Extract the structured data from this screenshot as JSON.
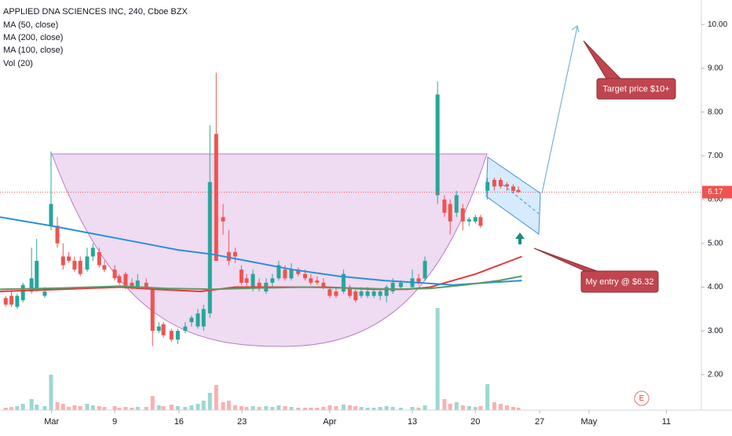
{
  "chart_data": {
    "type": "candlestick",
    "title": "APPLIED DNA SCIENCES INC, 240, Cboe BZX",
    "indicators": [
      "MA (50, close)",
      "MA (200, close)",
      "MA (100, close)",
      "Vol (20)"
    ],
    "up_color": "#26a69a",
    "down_color": "#ef5350",
    "ylim": [
      1.19,
      10.56
    ],
    "yticks": [
      {
        "value": 2,
        "label": "2.00"
      },
      {
        "value": 3,
        "label": "3.00"
      },
      {
        "value": 4,
        "label": "4.00"
      },
      {
        "value": 5,
        "label": "5.00"
      },
      {
        "value": 6,
        "label": "6.00"
      },
      {
        "value": 7,
        "label": "7.00"
      },
      {
        "value": 8,
        "label": "8.00"
      },
      {
        "value": 9,
        "label": "9.00"
      },
      {
        "value": 10,
        "label": "10.00"
      }
    ],
    "xlim": [
      -1,
      121.3
    ],
    "xticks": [
      {
        "value": 8,
        "label": "Mar"
      },
      {
        "value": 19,
        "label": "9"
      },
      {
        "value": 30.2,
        "label": "16"
      },
      {
        "value": 41.2,
        "label": "23"
      },
      {
        "value": 56.5,
        "label": "Apr"
      },
      {
        "value": 70.9,
        "label": "13"
      },
      {
        "value": 81.9,
        "label": "20"
      },
      {
        "value": 93.1,
        "label": "27"
      },
      {
        "value": 101.7,
        "label": "May"
      },
      {
        "value": 115.2,
        "label": "11"
      }
    ],
    "last_price": {
      "value": 6.17,
      "label": "6.17"
    },
    "annotations": [
      "Target price $10+",
      "My entry @ $6.32"
    ],
    "event_marker": "E",
    "candles": [
      {
        "x": 0,
        "o": 3.75,
        "h": 3.8,
        "l": 3.55,
        "c": 3.6,
        "v": 3
      },
      {
        "x": 1,
        "o": 3.8,
        "h": 3.9,
        "l": 3.55,
        "c": 3.6,
        "v": 4
      },
      {
        "x": 2,
        "o": 3.55,
        "h": 3.85,
        "l": 3.5,
        "c": 3.8,
        "v": 5
      },
      {
        "x": 3,
        "o": 3.7,
        "h": 4.1,
        "l": 3.65,
        "c": 4.05,
        "v": 8
      },
      {
        "x": 4.5,
        "o": 3.9,
        "h": 4.9,
        "l": 3.85,
        "c": 4.2,
        "v": 14
      },
      {
        "x": 5.4,
        "o": 3.95,
        "h": 5.1,
        "l": 3.9,
        "c": 4.6,
        "v": 7
      },
      {
        "x": 6.8,
        "o": 3.8,
        "h": 4.0,
        "l": 3.75,
        "c": 3.9,
        "v": 5
      },
      {
        "x": 7.9,
        "o": 5.4,
        "h": 7.1,
        "l": 5.3,
        "c": 5.9,
        "v": 45
      },
      {
        "x": 9,
        "o": 5.4,
        "h": 5.6,
        "l": 4.9,
        "c": 5.0,
        "v": 10
      },
      {
        "x": 10,
        "o": 4.7,
        "h": 5.0,
        "l": 4.4,
        "c": 4.5,
        "v": 8
      },
      {
        "x": 11,
        "o": 4.7,
        "h": 4.8,
        "l": 4.55,
        "c": 4.6,
        "v": 4
      },
      {
        "x": 12,
        "o": 4.6,
        "h": 4.7,
        "l": 4.35,
        "c": 4.4,
        "v": 6
      },
      {
        "x": 13,
        "o": 4.6,
        "h": 4.7,
        "l": 4.25,
        "c": 4.3,
        "v": 5
      },
      {
        "x": 14.2,
        "o": 4.4,
        "h": 4.9,
        "l": 4.35,
        "c": 4.7,
        "v": 8
      },
      {
        "x": 15.2,
        "o": 4.7,
        "h": 5.0,
        "l": 4.6,
        "c": 4.9,
        "v": 6
      },
      {
        "x": 16.3,
        "o": 4.8,
        "h": 4.9,
        "l": 4.45,
        "c": 4.5,
        "v": 5
      },
      {
        "x": 17.2,
        "o": 4.5,
        "h": 4.6,
        "l": 4.35,
        "c": 4.4,
        "v": 4
      },
      {
        "x": 19,
        "o": 4.4,
        "h": 4.5,
        "l": 4.15,
        "c": 4.2,
        "v": 5
      },
      {
        "x": 19.8,
        "o": 4.25,
        "h": 4.3,
        "l": 4.05,
        "c": 4.1,
        "v": 3
      },
      {
        "x": 20.9,
        "o": 4.3,
        "h": 4.35,
        "l": 3.95,
        "c": 4.0,
        "v": 4
      },
      {
        "x": 22,
        "o": 4.1,
        "h": 4.2,
        "l": 3.95,
        "c": 4.0,
        "v": 3
      },
      {
        "x": 23,
        "o": 4.0,
        "h": 4.3,
        "l": 3.95,
        "c": 4.15,
        "v": 4
      },
      {
        "x": 24.5,
        "o": 4.1,
        "h": 4.2,
        "l": 3.95,
        "c": 4.0,
        "v": 4
      },
      {
        "x": 25.6,
        "o": 3.95,
        "h": 4.0,
        "l": 2.65,
        "c": 3.0,
        "v": 18
      },
      {
        "x": 26.7,
        "o": 3.0,
        "h": 3.2,
        "l": 2.95,
        "c": 3.1,
        "v": 6
      },
      {
        "x": 27.5,
        "o": 3.15,
        "h": 3.2,
        "l": 2.85,
        "c": 2.9,
        "v": 5
      },
      {
        "x": 28.9,
        "o": 3.0,
        "h": 3.05,
        "l": 2.75,
        "c": 2.8,
        "v": 7
      },
      {
        "x": 30,
        "o": 2.8,
        "h": 3.05,
        "l": 2.7,
        "c": 3.0,
        "v": 5
      },
      {
        "x": 31.3,
        "o": 3.0,
        "h": 3.2,
        "l": 2.95,
        "c": 3.1,
        "v": 4
      },
      {
        "x": 32.4,
        "o": 3.2,
        "h": 3.35,
        "l": 3.1,
        "c": 3.3,
        "v": 6
      },
      {
        "x": 33.5,
        "o": 3.1,
        "h": 3.5,
        "l": 3.05,
        "c": 3.4,
        "v": 8
      },
      {
        "x": 34.5,
        "o": 3.1,
        "h": 3.6,
        "l": 3.0,
        "c": 3.5,
        "v": 12
      },
      {
        "x": 35.6,
        "o": 3.4,
        "h": 7.7,
        "l": 3.3,
        "c": 6.4,
        "v": 22
      },
      {
        "x": 36.7,
        "o": 7.5,
        "h": 8.9,
        "l": 4.6,
        "c": 4.6,
        "v": 32
      },
      {
        "x": 37.9,
        "o": 5.6,
        "h": 5.9,
        "l": 5.2,
        "c": 5.5,
        "v": 10
      },
      {
        "x": 38.9,
        "o": 4.8,
        "h": 5.3,
        "l": 4.5,
        "c": 4.6,
        "v": 12
      },
      {
        "x": 40,
        "o": 4.8,
        "h": 4.9,
        "l": 4.55,
        "c": 4.7,
        "v": 6
      },
      {
        "x": 41.1,
        "o": 4.4,
        "h": 4.5,
        "l": 4.05,
        "c": 4.1,
        "v": 5
      },
      {
        "x": 42,
        "o": 4.2,
        "h": 4.3,
        "l": 4.0,
        "c": 4.1,
        "v": 4
      },
      {
        "x": 43.1,
        "o": 4.0,
        "h": 4.4,
        "l": 3.9,
        "c": 4.3,
        "v": 5
      },
      {
        "x": 44.2,
        "o": 4.1,
        "h": 4.2,
        "l": 3.9,
        "c": 4.0,
        "v": 4
      },
      {
        "x": 45.4,
        "o": 3.9,
        "h": 4.2,
        "l": 3.85,
        "c": 4.1,
        "v": 5
      },
      {
        "x": 46.5,
        "o": 4.1,
        "h": 4.3,
        "l": 4.0,
        "c": 4.2,
        "v": 4
      },
      {
        "x": 47.6,
        "o": 4.2,
        "h": 4.6,
        "l": 4.15,
        "c": 4.5,
        "v": 6
      },
      {
        "x": 48.7,
        "o": 4.4,
        "h": 4.5,
        "l": 4.15,
        "c": 4.2,
        "v": 5
      },
      {
        "x": 49.8,
        "o": 4.2,
        "h": 4.55,
        "l": 4.15,
        "c": 4.4,
        "v": 4
      },
      {
        "x": 51,
        "o": 4.4,
        "h": 4.45,
        "l": 4.25,
        "c": 4.3,
        "v": 3
      },
      {
        "x": 52.2,
        "o": 4.3,
        "h": 4.4,
        "l": 4.15,
        "c": 4.2,
        "v": 3
      },
      {
        "x": 53.2,
        "o": 4.2,
        "h": 4.3,
        "l": 4.05,
        "c": 4.1,
        "v": 3
      },
      {
        "x": 54.3,
        "o": 4.15,
        "h": 4.25,
        "l": 4.05,
        "c": 4.1,
        "v": 3
      },
      {
        "x": 55.4,
        "o": 4.1,
        "h": 4.2,
        "l": 3.95,
        "c": 4.0,
        "v": 4
      },
      {
        "x": 56.5,
        "o": 3.95,
        "h": 4.0,
        "l": 3.75,
        "c": 3.8,
        "v": 6
      },
      {
        "x": 57.6,
        "o": 3.9,
        "h": 4.0,
        "l": 3.75,
        "c": 3.8,
        "v": 5
      },
      {
        "x": 58.9,
        "o": 3.9,
        "h": 4.4,
        "l": 3.85,
        "c": 4.3,
        "v": 7
      },
      {
        "x": 60,
        "o": 4.0,
        "h": 4.05,
        "l": 3.75,
        "c": 3.8,
        "v": 6
      },
      {
        "x": 61,
        "o": 3.9,
        "h": 3.95,
        "l": 3.65,
        "c": 3.7,
        "v": 5
      },
      {
        "x": 62,
        "o": 3.8,
        "h": 4.0,
        "l": 3.75,
        "c": 3.9,
        "v": 4
      },
      {
        "x": 63.1,
        "o": 3.8,
        "h": 4.0,
        "l": 3.75,
        "c": 3.9,
        "v": 3
      },
      {
        "x": 64.2,
        "o": 3.8,
        "h": 3.95,
        "l": 3.75,
        "c": 3.9,
        "v": 3
      },
      {
        "x": 65.3,
        "o": 3.8,
        "h": 3.95,
        "l": 3.7,
        "c": 3.9,
        "v": 4
      },
      {
        "x": 66.4,
        "o": 3.8,
        "h": 4.05,
        "l": 3.65,
        "c": 4.0,
        "v": 5
      },
      {
        "x": 67.5,
        "o": 3.9,
        "h": 4.2,
        "l": 3.85,
        "c": 4.1,
        "v": 4
      },
      {
        "x": 68.9,
        "o": 4.0,
        "h": 4.15,
        "l": 3.95,
        "c": 4.1,
        "v": 3
      },
      {
        "x": 70.9,
        "o": 4.0,
        "h": 4.4,
        "l": 3.95,
        "c": 4.2,
        "v": 4
      },
      {
        "x": 72,
        "o": 4.2,
        "h": 4.3,
        "l": 4.05,
        "c": 4.1,
        "v": 3
      },
      {
        "x": 73.1,
        "o": 4.2,
        "h": 4.7,
        "l": 4.15,
        "c": 4.6,
        "v": 6
      },
      {
        "x": 75.3,
        "o": 6.1,
        "h": 8.7,
        "l": 5.9,
        "c": 8.4,
        "v": 130
      },
      {
        "x": 76.5,
        "o": 6.0,
        "h": 6.1,
        "l": 5.6,
        "c": 5.7,
        "v": 14
      },
      {
        "x": 77.5,
        "o": 5.9,
        "h": 6.0,
        "l": 5.2,
        "c": 5.5,
        "v": 8
      },
      {
        "x": 78.6,
        "o": 5.7,
        "h": 6.2,
        "l": 5.6,
        "c": 6.1,
        "v": 10
      },
      {
        "x": 79.7,
        "o": 5.8,
        "h": 5.9,
        "l": 5.3,
        "c": 5.5,
        "v": 6
      },
      {
        "x": 80.8,
        "o": 5.5,
        "h": 5.6,
        "l": 5.4,
        "c": 5.55,
        "v": 5
      },
      {
        "x": 81.9,
        "o": 5.5,
        "h": 5.65,
        "l": 5.45,
        "c": 5.6,
        "v": 4
      },
      {
        "x": 82.8,
        "o": 5.6,
        "h": 5.65,
        "l": 5.35,
        "c": 5.4,
        "v": 5
      },
      {
        "x": 84,
        "o": 6.2,
        "h": 6.5,
        "l": 6.0,
        "c": 6.4,
        "v": 33
      },
      {
        "x": 85.2,
        "o": 6.45,
        "h": 6.5,
        "l": 6.2,
        "c": 6.3,
        "v": 10
      },
      {
        "x": 86.3,
        "o": 6.45,
        "h": 6.5,
        "l": 6.25,
        "c": 6.3,
        "v": 8
      },
      {
        "x": 87.4,
        "o": 6.35,
        "h": 6.4,
        "l": 6.2,
        "c": 6.3,
        "v": 6
      },
      {
        "x": 88.5,
        "o": 6.3,
        "h": 6.35,
        "l": 6.15,
        "c": 6.2,
        "v": 4
      },
      {
        "x": 89.4,
        "o": 6.22,
        "h": 6.3,
        "l": 6.15,
        "c": 6.17,
        "v": 3
      }
    ],
    "series": [
      {
        "name": "MA (50, close)",
        "color": "#e53935",
        "x": [
          -1,
          10,
          20,
          26,
          34,
          40,
          48,
          56,
          64,
          70,
          74,
          78,
          82,
          86,
          90
        ],
        "values": [
          3.9,
          3.95,
          4.0,
          3.95,
          3.9,
          4.0,
          4.0,
          4.0,
          3.95,
          3.95,
          4.0,
          4.15,
          4.3,
          4.5,
          4.7
        ]
      },
      {
        "name": "MA (200, close)",
        "color": "#2b8fd6",
        "x": [
          -1,
          8,
          16,
          24,
          30,
          36,
          42,
          50,
          58,
          66,
          72,
          78,
          84,
          90
        ],
        "values": [
          5.6,
          5.4,
          5.2,
          5.0,
          4.85,
          4.75,
          4.6,
          4.4,
          4.25,
          4.15,
          4.1,
          4.05,
          4.1,
          4.15
        ]
      },
      {
        "name": "MA (100, close)",
        "color": "#5a9a6a",
        "x": [
          -1,
          10,
          20,
          28,
          36,
          44,
          52,
          60,
          68,
          74,
          80,
          86,
          90
        ],
        "values": [
          3.95,
          3.98,
          4.02,
          3.97,
          3.95,
          3.98,
          4.0,
          3.98,
          3.95,
          3.97,
          4.05,
          4.15,
          4.25
        ]
      }
    ]
  }
}
